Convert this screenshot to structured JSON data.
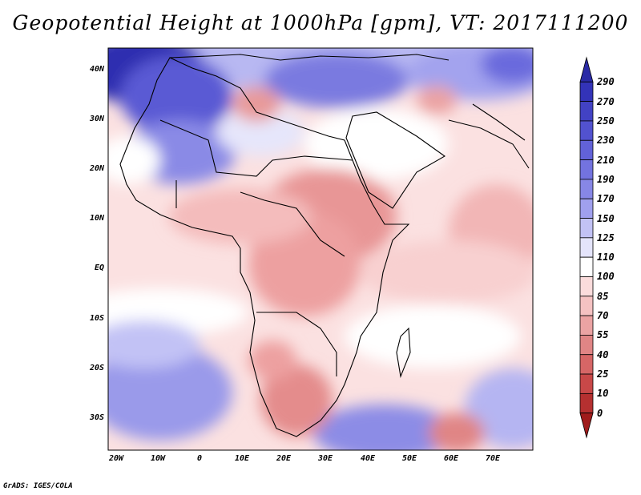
{
  "title": "Geopotential Height at 1000hPa [gpm], VT: 2017111200",
  "credit": "GrADS: IGES/COLA",
  "map": {
    "lat_labels": [
      "40N",
      "30N",
      "20N",
      "10N",
      "EQ",
      "10S",
      "20S",
      "30S"
    ],
    "lon_labels": [
      "20W",
      "10W",
      "0",
      "10E",
      "20E",
      "30E",
      "40E",
      "50E",
      "60E",
      "70E"
    ]
  },
  "colorbar": {
    "levels": [
      "290",
      "270",
      "250",
      "230",
      "210",
      "190",
      "170",
      "150",
      "125",
      "110",
      "100",
      "85",
      "70",
      "55",
      "40",
      "25",
      "10",
      "0"
    ],
    "colors": [
      "#2a2aa6",
      "#3333b8",
      "#4242c4",
      "#5252cf",
      "#6262d8",
      "#7373df",
      "#8787e6",
      "#a0a0ee",
      "#c2c2f5",
      "#e4e4fb",
      "#ffffff",
      "#fbdcdc",
      "#f5c2c2",
      "#eba3a3",
      "#e08585",
      "#d66666",
      "#c84848",
      "#b53030",
      "#a01c1c"
    ]
  }
}
